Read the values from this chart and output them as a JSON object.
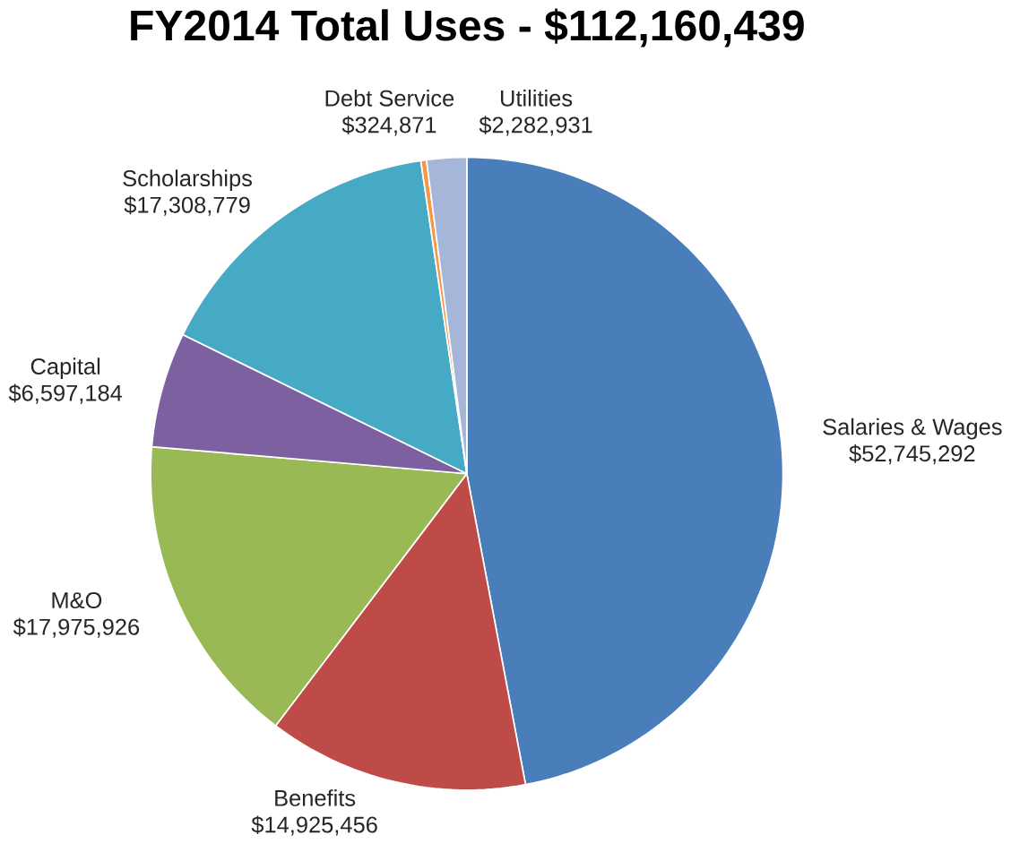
{
  "chart_data": {
    "type": "pie",
    "title": "FY2014 Total Uses - $112,160,439",
    "categories": [
      "Salaries & Wages",
      "Benefits",
      "M&O",
      "Capital",
      "Scholarships",
      "Debt Service",
      "Utilities"
    ],
    "values": [
      52745292,
      14925456,
      17975926,
      6597184,
      17308779,
      324871,
      2282931
    ],
    "value_labels": [
      "$52,745,292",
      "$14,925,456",
      "$17,975,926",
      "$6,597,184",
      "$17,308,779",
      "$324,871",
      "$2,282,931"
    ],
    "colors": [
      "#4a7ebb",
      "#be4b48",
      "#98b954",
      "#7d60a0",
      "#46aac5",
      "#f79646",
      "#a5b6d9"
    ]
  }
}
